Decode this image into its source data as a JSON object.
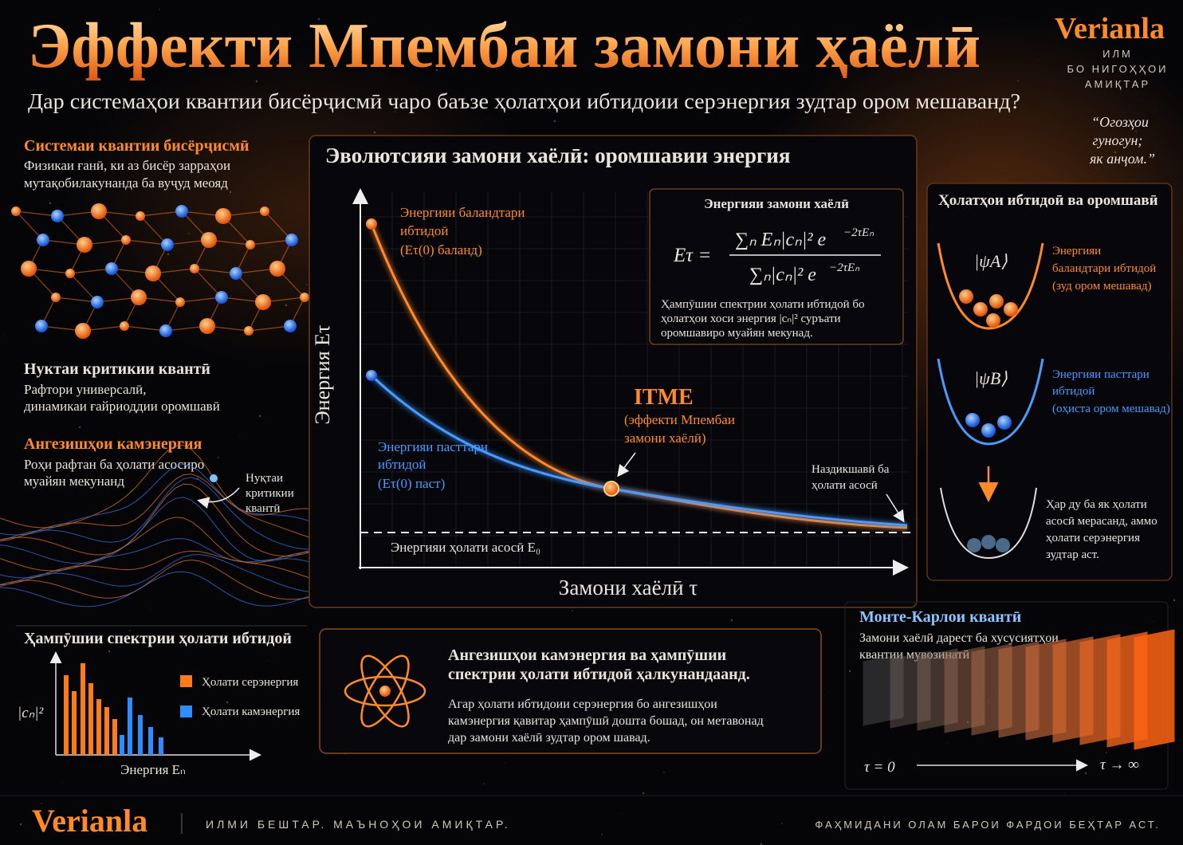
{
  "header": {
    "title": "Эффекти Мпембаи замони ҳаёлӣ",
    "subtitle": "Дар системаҳои квантии бисёрҷисмӣ чаро баъзе ҳолатҳои ибтидоии серэнергия зудтар ором мешаванд?",
    "brand": "Verianla",
    "tagline": [
      "ИЛМ",
      "БО НИГОҲҲОИ",
      "АМИҚТАР"
    ],
    "quote": [
      "“Огозҳои",
      "гуногун;",
      "як анҷом.”"
    ]
  },
  "left": {
    "sections": [
      {
        "title": "Системаи квантии бисёрҷисмӣ",
        "lines": [
          "Физикаи ғанӣ, ки аз бисёр зарраҳои",
          "мутақобилакунанда ба вуҷуд меояд"
        ]
      },
      {
        "title": "Нуктаи критикии квантӣ",
        "lines": [
          "Рафтори универсалӣ,",
          "динамикаи ғайриоддии оромшавӣ"
        ]
      },
      {
        "title": "Ангезишҳои камэнергия",
        "lines": [
          "Роҳи рафтан ба ҳолати асосиро",
          "муайян мекунанд"
        ]
      }
    ],
    "critical_label": [
      "Нуқтаи",
      "критикии",
      "квантӣ"
    ],
    "spectrum": {
      "title": "Ҳампӯшии спектрии ҳолати ибтидоӣ",
      "y_label": "|cₙ|²",
      "x_label": "Энергия Eₙ",
      "legend": [
        "Ҳолати серэнергия",
        "Ҳолати камэнергия"
      ]
    }
  },
  "main": {
    "title": "Эволютсияи замони хаёлӣ: оромшавии энергия",
    "y_label": "Энергия Eτ",
    "x_label": "Замони хаёлӣ τ",
    "ground": "Энергияи ҳолати асосӣ E₀",
    "high": [
      "Энергияи баландтари",
      "ибтидоӣ",
      "(Eτ(0) баланд)"
    ],
    "low": [
      "Энергияи пасттари",
      "ибтидоӣ",
      "(Eτ(0) паст)"
    ],
    "itme": "ITME",
    "itme_lines": [
      "(эффекти Мпембаи",
      "замони хаёлӣ)"
    ],
    "approach": [
      "Наздикшавӣ ба",
      "ҳолати асосӣ"
    ],
    "formula": {
      "title": "Энергияи замони хаёлӣ",
      "lhs": "Eτ =",
      "num": "∑ₙ Eₙ|cₙ|² e",
      "num_exp": "−2τEₙ",
      "den": "∑ₙ|cₙ|² e",
      "den_exp": "−2τEₙ",
      "lines": [
        "Ҳампӯшии спектрии ҳолати ибтидоӣ бо",
        "ҳолатҳои хоси энергия |cₙ|² суръати",
        "оромшавиро муайян мекунад."
      ]
    }
  },
  "right": {
    "title": "Ҳолатҳои ибтидоӣ ва оромшавӣ",
    "psi_a": "|ψA⟩",
    "psi_b": "|ψB⟩",
    "a_lines": [
      "Энергияи",
      "баландтари ибтидоӣ",
      "(зуд ором мешавад)"
    ],
    "b_lines": [
      "Энергияи пасттари",
      "ибтидоӣ",
      "(оҳиста ором мешавад)"
    ],
    "end_lines": [
      "Ҳар ду ба як ҳолати",
      "асосӣ мерасанд, аммо",
      "ҳолати серэнергия",
      "зудтар аст."
    ]
  },
  "insight": {
    "title": [
      "Ангезишҳои камэнергия ва ҳампӯшии",
      "спектрии ҳолати ибтидоӣ ҳалкунандаанд."
    ],
    "lines": [
      "Агар ҳолати ибтидоии серэнергия бо ангезишҳои",
      "камэнергия қавитар ҳампӯшӣ дошта бошад, он метавонад",
      "дар замони хаёлӣ зудтар ором шавад."
    ]
  },
  "monte_carlo": {
    "title": "Монте-Карлои квантӣ",
    "lines": [
      "Замони хаёлӣ дарест ба хусусиятҳои",
      "квантии мувозинатӣ"
    ],
    "start": "τ = 0",
    "end": "τ → ∞"
  },
  "footer": {
    "brand": "Verianla",
    "left": "ИЛМИ БЕШТАР. МАЪНОҲОИ АМИҚТАР.",
    "right": "ФАҲМИДАНИ ОЛАМ БАРОИ ФАРДОИ БЕҲТАР АСТ."
  }
}
